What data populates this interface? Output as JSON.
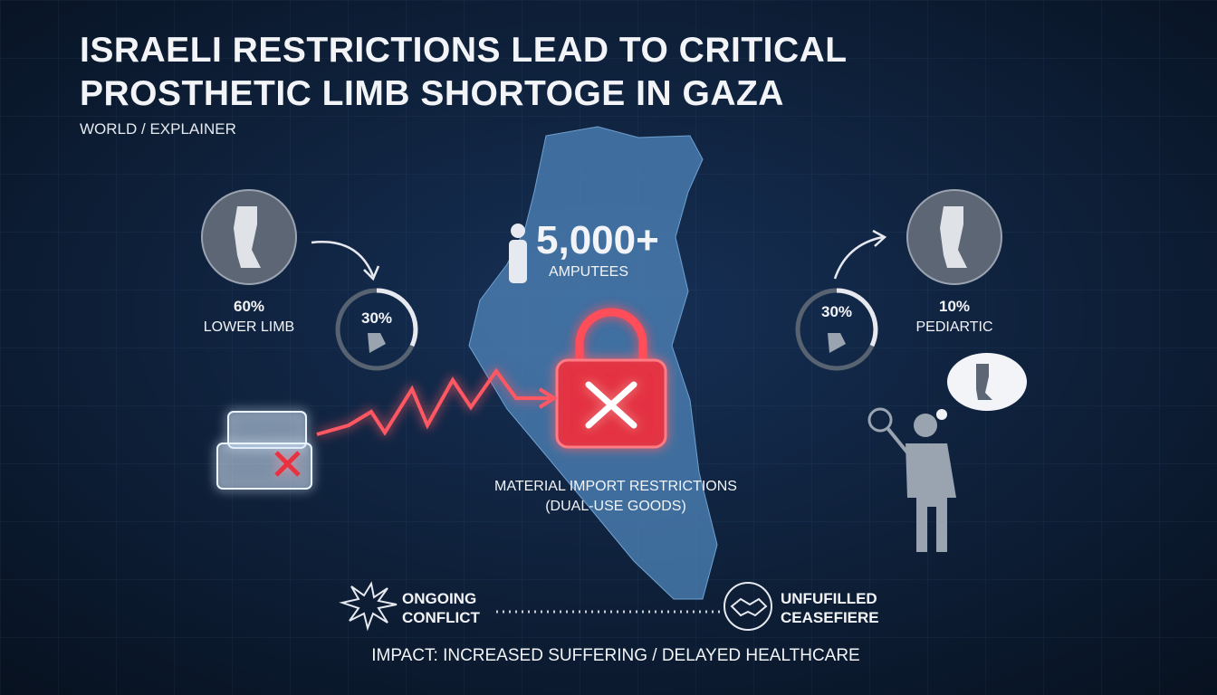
{
  "header": {
    "title": [
      "ISRAELI RESTRICTIONS LEAD TO CRITICAL",
      "PROSTHETIC LIMB SHORTOGE IN GAZA"
    ],
    "section": "WORLD / EXPLAINER"
  },
  "center": {
    "count": "5,000+",
    "label": "AMPUTEES"
  },
  "left": {
    "percent": "60%",
    "label": "LOWER LIMB",
    "ring": "30%"
  },
  "right": {
    "ring": "30%",
    "percent": "10%",
    "label": "PEDIARTIC"
  },
  "restriction": {
    "line1": "MATERIAL IMPORT RESTRICTIONS",
    "line2": "(DUAL-USE GOODS)"
  },
  "footer": {
    "conflict": [
      "ONGOING",
      "CONFLICT"
    ],
    "ceasefire": [
      "UNFUFILLED",
      "CEASEFIERE"
    ],
    "impact": "IMPACT: INCREASED SUFFERING / DELAYED HEALTHCARE"
  }
}
